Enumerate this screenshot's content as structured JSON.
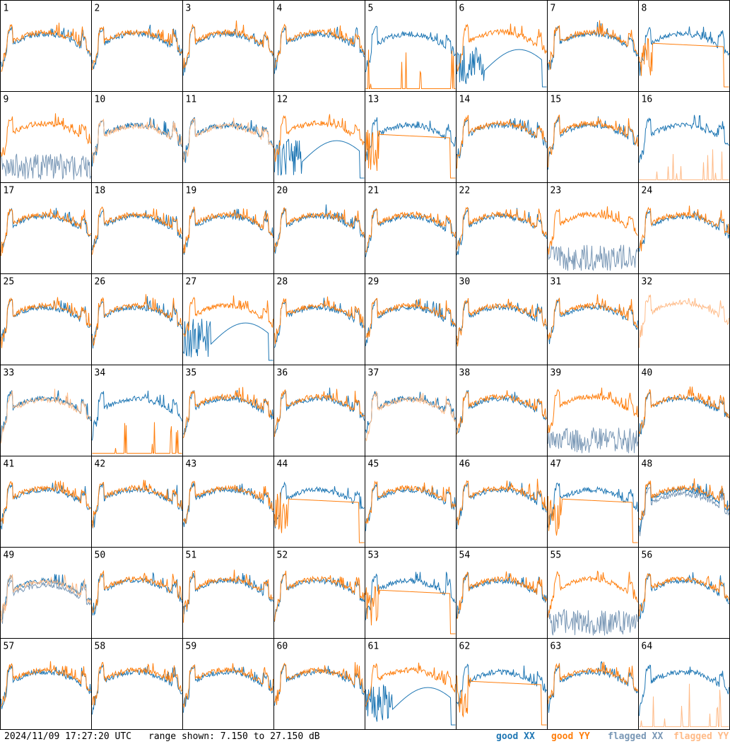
{
  "chart_data": {
    "type": "line",
    "layout": "8x8 small multiples",
    "panels": [
      "1",
      "2",
      "3",
      "4",
      "5",
      "6",
      "7",
      "8",
      "9",
      "10",
      "11",
      "12",
      "13",
      "14",
      "15",
      "16",
      "17",
      "18",
      "19",
      "20",
      "21",
      "22",
      "23",
      "24",
      "25",
      "26",
      "27",
      "28",
      "29",
      "30",
      "31",
      "32",
      "33",
      "34",
      "35",
      "36",
      "37",
      "38",
      "39",
      "40",
      "41",
      "42",
      "43",
      "44",
      "45",
      "46",
      "47",
      "48",
      "49",
      "50",
      "51",
      "52",
      "53",
      "54",
      "55",
      "56",
      "57",
      "58",
      "59",
      "60",
      "61",
      "62",
      "63",
      "64"
    ],
    "series": [
      {
        "name": "good XX",
        "color": "#1f77b4"
      },
      {
        "name": "good YY",
        "color": "#ff7f0e"
      },
      {
        "name": "flagged XX",
        "color": "#7a98b6"
      },
      {
        "name": "flagged YY",
        "color": "#ffbb88"
      }
    ],
    "ylim": [
      7.15,
      27.15
    ],
    "yunit": "dB"
  },
  "footer": {
    "timestamp": "2024/11/09 17:27:20 UTC",
    "range": "range shown: 7.150 to 27.150 dB"
  },
  "legend": {
    "good_xx": "good XX",
    "good_yy": "good YY",
    "flagged_xx": "flagged XX",
    "flagged_yy": "flagged YY"
  },
  "colors": {
    "good_xx": "#1f77b4",
    "good_yy": "#ff7f0e",
    "flagged_xx": "#7a98b6",
    "flagged_yy": "#ffbb88"
  }
}
